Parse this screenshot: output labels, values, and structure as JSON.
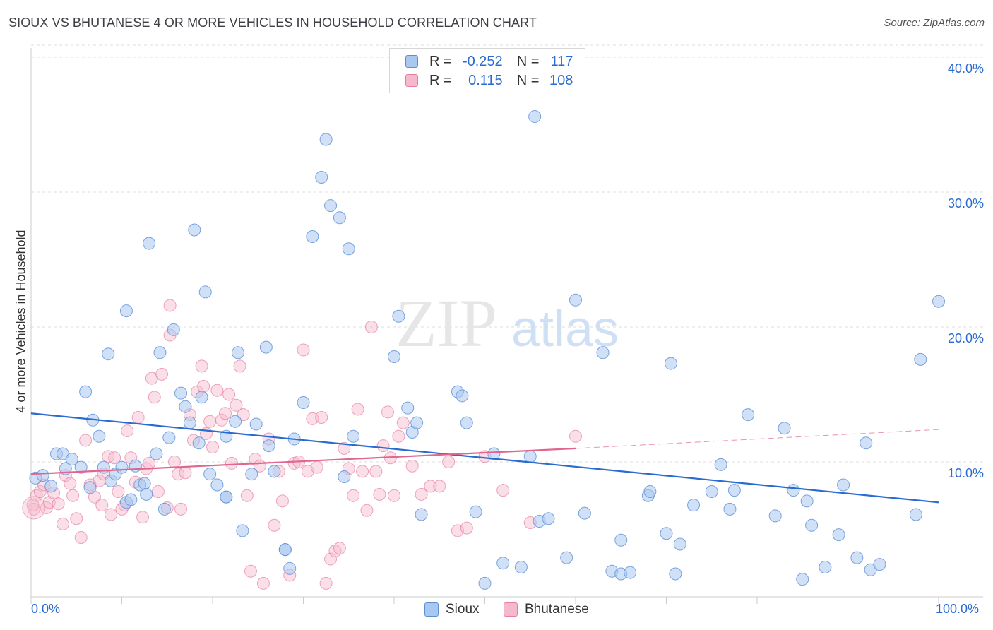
{
  "header": {
    "title": "SIOUX VS BHUTANESE 4 OR MORE VEHICLES IN HOUSEHOLD CORRELATION CHART",
    "source": "Source: ZipAtlas.com"
  },
  "watermark": {
    "zip": "ZIP",
    "atlas": "atlas"
  },
  "legend": {
    "rows": [
      {
        "name": "Sioux",
        "r_label": "R =",
        "r_value": "-0.252",
        "n_label": "N =",
        "n_value": "117"
      },
      {
        "name": "Bhutanese",
        "r_label": "R =",
        "r_value": "0.115",
        "n_label": "N =",
        "n_value": "108"
      }
    ]
  },
  "colors": {
    "sioux_fill": "#a9c8f0",
    "sioux_stroke": "#5b8fd6",
    "sioux_line": "#2a6bd1",
    "bhutanese_fill": "#f6b9cb",
    "bhutanese_stroke": "#e57fa0",
    "bhutanese_line": "#e0668f",
    "accent_text": "#2a6bd1",
    "grid": "#dddddd"
  },
  "chart_data": {
    "type": "scatter",
    "title": "SIOUX VS BHUTANESE 4 OR MORE VEHICLES IN HOUSEHOLD CORRELATION CHART",
    "xlabel": "",
    "ylabel": "4 or more Vehicles in Household",
    "xlim": [
      0,
      100
    ],
    "ylim": [
      0,
      40
    ],
    "x_tick_labels": [
      "0.0%",
      "100.0%"
    ],
    "y_ticks": [
      10,
      20,
      30,
      40
    ],
    "y_tick_labels": [
      "10.0%",
      "20.0%",
      "30.0%",
      "40.0%"
    ],
    "grid": true,
    "legend_position": "bottom-center",
    "series": [
      {
        "name": "Sioux",
        "trend": {
          "x": [
            0,
            100
          ],
          "y": [
            13.6,
            7.0
          ]
        },
        "points": [
          [
            0.5,
            8.8
          ],
          [
            1.3,
            9.0
          ],
          [
            2.2,
            8.2
          ],
          [
            2.8,
            10.6
          ],
          [
            3.5,
            10.6
          ],
          [
            3.8,
            9.5
          ],
          [
            4.5,
            10.2
          ],
          [
            5.5,
            9.6
          ],
          [
            6.0,
            15.2
          ],
          [
            6.5,
            8.1
          ],
          [
            6.8,
            13.1
          ],
          [
            7.5,
            11.9
          ],
          [
            8.0,
            9.6
          ],
          [
            8.5,
            18.0
          ],
          [
            8.8,
            8.6
          ],
          [
            9.3,
            9.1
          ],
          [
            10.0,
            9.6
          ],
          [
            10.5,
            7.0
          ],
          [
            10.5,
            21.2
          ],
          [
            11.5,
            9.7
          ],
          [
            12.0,
            8.3
          ],
          [
            12.5,
            8.4
          ],
          [
            12.7,
            7.6
          ],
          [
            13.0,
            26.2
          ],
          [
            13.8,
            10.6
          ],
          [
            14.2,
            18.1
          ],
          [
            14.7,
            6.5
          ],
          [
            15.2,
            11.8
          ],
          [
            15.7,
            19.8
          ],
          [
            16.5,
            15.1
          ],
          [
            17.0,
            14.1
          ],
          [
            17.5,
            12.9
          ],
          [
            18.0,
            27.2
          ],
          [
            18.5,
            11.4
          ],
          [
            18.8,
            14.8
          ],
          [
            19.2,
            22.6
          ],
          [
            19.7,
            9.1
          ],
          [
            20.5,
            8.3
          ],
          [
            21.5,
            7.4
          ],
          [
            21.5,
            11.9
          ],
          [
            22.5,
            13.0
          ],
          [
            22.8,
            18.1
          ],
          [
            23.3,
            4.9
          ],
          [
            24.3,
            9.1
          ],
          [
            24.8,
            12.8
          ],
          [
            25.9,
            18.5
          ],
          [
            26.2,
            11.2
          ],
          [
            26.8,
            9.3
          ],
          [
            28.0,
            3.5
          ],
          [
            28.5,
            2.1
          ],
          [
            29.0,
            11.7
          ],
          [
            30.0,
            14.4
          ],
          [
            31.0,
            26.7
          ],
          [
            32.0,
            31.1
          ],
          [
            32.5,
            33.9
          ],
          [
            33.0,
            29.0
          ],
          [
            34.0,
            28.1
          ],
          [
            34.5,
            8.9
          ],
          [
            35.0,
            25.8
          ],
          [
            35.5,
            11.9
          ],
          [
            40.0,
            17.8
          ],
          [
            40.5,
            20.8
          ],
          [
            41.5,
            14.0
          ],
          [
            42.0,
            12.2
          ],
          [
            42.5,
            12.9
          ],
          [
            43.0,
            6.1
          ],
          [
            47.0,
            15.2
          ],
          [
            47.5,
            14.9
          ],
          [
            48.0,
            12.9
          ],
          [
            49.0,
            6.3
          ],
          [
            50.0,
            1.0
          ],
          [
            51.0,
            10.6
          ],
          [
            52.0,
            2.5
          ],
          [
            54.0,
            2.2
          ],
          [
            55.0,
            10.4
          ],
          [
            55.5,
            35.6
          ],
          [
            56.0,
            5.6
          ],
          [
            57.0,
            5.8
          ],
          [
            59.0,
            2.9
          ],
          [
            60.0,
            22.0
          ],
          [
            61.0,
            6.2
          ],
          [
            63.0,
            18.1
          ],
          [
            64.0,
            1.9
          ],
          [
            65.0,
            1.7
          ],
          [
            65.0,
            4.2
          ],
          [
            66.0,
            1.8
          ],
          [
            68.0,
            7.5
          ],
          [
            68.2,
            7.8
          ],
          [
            70.0,
            4.7
          ],
          [
            70.5,
            17.3
          ],
          [
            71.0,
            1.7
          ],
          [
            71.5,
            3.9
          ],
          [
            73.0,
            6.8
          ],
          [
            75.0,
            7.8
          ],
          [
            76.0,
            9.8
          ],
          [
            77.0,
            6.5
          ],
          [
            77.5,
            7.9
          ],
          [
            79.0,
            13.5
          ],
          [
            82.0,
            6.0
          ],
          [
            83.0,
            12.5
          ],
          [
            84.0,
            7.9
          ],
          [
            85.0,
            1.3
          ],
          [
            85.5,
            7.1
          ],
          [
            86.0,
            5.3
          ],
          [
            87.5,
            2.2
          ],
          [
            89.0,
            4.6
          ],
          [
            89.5,
            8.3
          ],
          [
            91.0,
            2.9
          ],
          [
            92.0,
            11.4
          ],
          [
            92.5,
            2.0
          ],
          [
            93.5,
            2.4
          ],
          [
            97.5,
            6.1
          ],
          [
            98.0,
            17.6
          ],
          [
            100.0,
            21.9
          ],
          [
            28.0,
            3.5
          ],
          [
            21.5,
            7.4
          ],
          [
            11.0,
            7.2
          ]
        ]
      },
      {
        "name": "Bhutanese",
        "trend": {
          "x": [
            0,
            60
          ],
          "y": [
            9.1,
            11.0
          ]
        },
        "trend_dashed": {
          "x": [
            60,
            100
          ],
          "y": [
            11.0,
            12.4
          ]
        },
        "points": [
          [
            0.3,
            6.5
          ],
          [
            0.6,
            7.5
          ],
          [
            1.0,
            7.8
          ],
          [
            1.4,
            8.3
          ],
          [
            1.7,
            6.6
          ],
          [
            2.0,
            7.0
          ],
          [
            2.5,
            7.7
          ],
          [
            3.0,
            6.9
          ],
          [
            3.5,
            5.4
          ],
          [
            3.8,
            9.0
          ],
          [
            4.3,
            8.4
          ],
          [
            4.6,
            7.5
          ],
          [
            5.0,
            5.8
          ],
          [
            5.5,
            4.4
          ],
          [
            6.0,
            11.6
          ],
          [
            6.5,
            8.3
          ],
          [
            7.0,
            7.4
          ],
          [
            7.5,
            8.6
          ],
          [
            7.8,
            6.8
          ],
          [
            8.0,
            9.1
          ],
          [
            8.5,
            10.4
          ],
          [
            8.8,
            6.1
          ],
          [
            9.2,
            10.3
          ],
          [
            9.6,
            7.8
          ],
          [
            10.0,
            6.5
          ],
          [
            10.3,
            6.8
          ],
          [
            10.6,
            12.3
          ],
          [
            11.0,
            10.3
          ],
          [
            11.5,
            8.5
          ],
          [
            11.8,
            13.3
          ],
          [
            12.3,
            5.9
          ],
          [
            12.7,
            9.5
          ],
          [
            13.0,
            9.9
          ],
          [
            13.3,
            16.2
          ],
          [
            13.6,
            14.8
          ],
          [
            14.0,
            7.8
          ],
          [
            14.4,
            16.5
          ],
          [
            15.0,
            6.6
          ],
          [
            15.3,
            21.6
          ],
          [
            15.3,
            19.4
          ],
          [
            15.8,
            10.0
          ],
          [
            16.2,
            9.1
          ],
          [
            16.5,
            6.5
          ],
          [
            17.0,
            9.2
          ],
          [
            17.5,
            13.5
          ],
          [
            17.9,
            11.6
          ],
          [
            18.3,
            15.2
          ],
          [
            18.8,
            17.1
          ],
          [
            19.0,
            15.6
          ],
          [
            19.3,
            12.1
          ],
          [
            19.7,
            13.0
          ],
          [
            20.0,
            11.1
          ],
          [
            20.5,
            15.3
          ],
          [
            21.0,
            13.1
          ],
          [
            21.4,
            13.6
          ],
          [
            21.8,
            15.0
          ],
          [
            22.1,
            9.9
          ],
          [
            22.6,
            14.2
          ],
          [
            23.0,
            17.1
          ],
          [
            23.4,
            13.5
          ],
          [
            23.8,
            7.5
          ],
          [
            24.2,
            1.9
          ],
          [
            24.7,
            10.2
          ],
          [
            25.2,
            9.7
          ],
          [
            25.6,
            1.0
          ],
          [
            26.2,
            11.7
          ],
          [
            26.8,
            5.3
          ],
          [
            27.3,
            9.3
          ],
          [
            27.7,
            7.1
          ],
          [
            28.5,
            1.6
          ],
          [
            29.0,
            9.9
          ],
          [
            29.5,
            10.0
          ],
          [
            30.0,
            18.3
          ],
          [
            30.5,
            9.3
          ],
          [
            31.0,
            13.2
          ],
          [
            31.5,
            9.6
          ],
          [
            32.0,
            13.3
          ],
          [
            32.5,
            1.0
          ],
          [
            33.0,
            2.8
          ],
          [
            33.5,
            3.4
          ],
          [
            34.0,
            3.6
          ],
          [
            34.5,
            11.0
          ],
          [
            35.0,
            9.5
          ],
          [
            35.5,
            7.5
          ],
          [
            36.0,
            13.9
          ],
          [
            36.5,
            9.3
          ],
          [
            37.0,
            6.4
          ],
          [
            37.5,
            20.0
          ],
          [
            38.0,
            9.3
          ],
          [
            38.4,
            7.6
          ],
          [
            38.8,
            11.2
          ],
          [
            39.3,
            13.7
          ],
          [
            39.6,
            10.3
          ],
          [
            40.0,
            7.5
          ],
          [
            40.5,
            11.9
          ],
          [
            41.0,
            12.9
          ],
          [
            42.0,
            9.7
          ],
          [
            43.0,
            7.6
          ],
          [
            44.0,
            8.2
          ],
          [
            45.0,
            8.2
          ],
          [
            46.0,
            10.0
          ],
          [
            47.0,
            4.9
          ],
          [
            48.0,
            5.1
          ],
          [
            50.0,
            10.4
          ],
          [
            52.0,
            7.9
          ],
          [
            55.0,
            5.5
          ],
          [
            60.0,
            11.9
          ],
          [
            0.2,
            6.8
          ]
        ]
      }
    ]
  }
}
